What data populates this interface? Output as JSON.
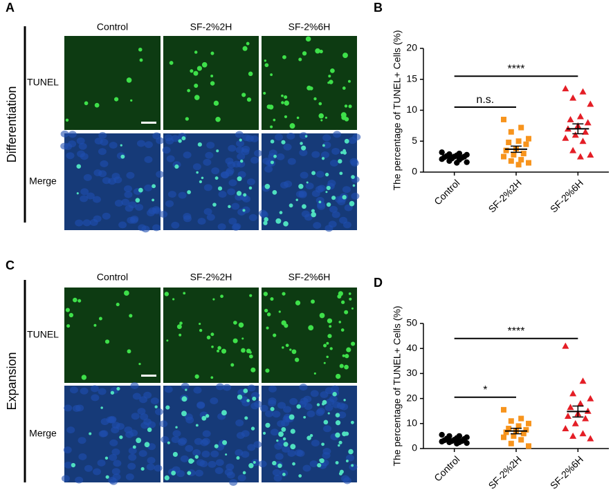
{
  "image_panels": [
    {
      "label": "A",
      "row_group": "Differentiation",
      "columns": [
        "Control",
        "SF-2%2H",
        "SF-2%6H"
      ],
      "rows": [
        "TUNEL",
        "Merge"
      ]
    },
    {
      "label": "C",
      "row_group": "Expansion",
      "columns": [
        "Control",
        "SF-2%2H",
        "SF-2%6H"
      ],
      "rows": [
        "TUNEL",
        "Merge"
      ]
    }
  ],
  "chart_data": [
    {
      "type": "scatter",
      "panel_label": "B",
      "y_label": "The percentage of TUNEL+ Cells (%)",
      "categories": [
        "Control",
        "SF-2%2H",
        "SF-2%6H"
      ],
      "ylim": [
        0,
        20
      ],
      "yticks": [
        0,
        5,
        10,
        15,
        20
      ],
      "series": [
        {
          "name": "Control",
          "color": "#000000",
          "marker": "circle",
          "mean": 2.5,
          "sem": 0.2,
          "values": [
            3.2,
            3.0,
            2.9,
            2.8,
            2.7,
            2.6,
            2.5,
            2.5,
            2.4,
            2.3,
            2.2,
            2.1,
            2.0,
            1.8,
            1.6,
            1.5
          ]
        },
        {
          "name": "SF-2%2H",
          "color": "#f7941d",
          "marker": "square",
          "mean": 3.7,
          "sem": 0.5,
          "values": [
            8.5,
            7.2,
            6.5,
            5.4,
            5.0,
            4.8,
            4.5,
            3.8,
            3.5,
            3.0,
            2.8,
            2.5,
            2.0,
            1.8,
            1.5,
            1.2
          ]
        },
        {
          "name": "SF-2%6H",
          "color": "#e41e26",
          "marker": "triangle",
          "mean": 7.0,
          "sem": 0.8,
          "values": [
            13.5,
            13.0,
            12.0,
            11.0,
            9.0,
            8.5,
            8.0,
            7.5,
            7.0,
            6.5,
            6.0,
            5.5,
            5.0,
            3.5,
            2.8,
            2.5
          ]
        }
      ],
      "annotations": [
        {
          "text": "****",
          "from": 0,
          "to": 2,
          "y": 15.5
        },
        {
          "text": "n.s.",
          "from": 0,
          "to": 1,
          "y": 10.5
        }
      ]
    },
    {
      "type": "scatter",
      "panel_label": "D",
      "y_label": "The percentage of TUNEL+ Cells (%)",
      "categories": [
        "Control",
        "SF-2%2H",
        "SF-2%6H"
      ],
      "ylim": [
        0,
        50
      ],
      "yticks": [
        0,
        10,
        20,
        30,
        40,
        50
      ],
      "series": [
        {
          "name": "Control",
          "color": "#000000",
          "marker": "circle",
          "mean": 3.5,
          "sem": 0.3,
          "values": [
            5.5,
            5.0,
            5.0,
            4.5,
            4.2,
            4.0,
            3.8,
            3.5,
            3.3,
            3.0,
            3.0,
            2.8,
            2.5,
            2.5,
            2.2,
            2.0
          ]
        },
        {
          "name": "SF-2%2H",
          "color": "#f7941d",
          "marker": "square",
          "mean": 7.0,
          "sem": 1.1,
          "values": [
            15.5,
            12.0,
            11.0,
            10.0,
            9.0,
            8.0,
            7.5,
            7.0,
            6.5,
            6.0,
            5.0,
            4.5,
            3.5,
            2.0,
            1.0
          ]
        },
        {
          "name": "SF-2%6H",
          "color": "#e41e26",
          "marker": "triangle",
          "mean": 14.8,
          "sem": 2.2,
          "values": [
            41.0,
            27.0,
            22.0,
            20.0,
            18.0,
            16.5,
            15.0,
            14.0,
            13.0,
            12.0,
            10.0,
            8.0,
            6.0,
            5.0,
            4.0
          ]
        }
      ],
      "annotations": [
        {
          "text": "****",
          "from": 0,
          "to": 2,
          "y": 44
        },
        {
          "text": "*",
          "from": 0,
          "to": 1,
          "y": 20.5
        }
      ]
    }
  ]
}
